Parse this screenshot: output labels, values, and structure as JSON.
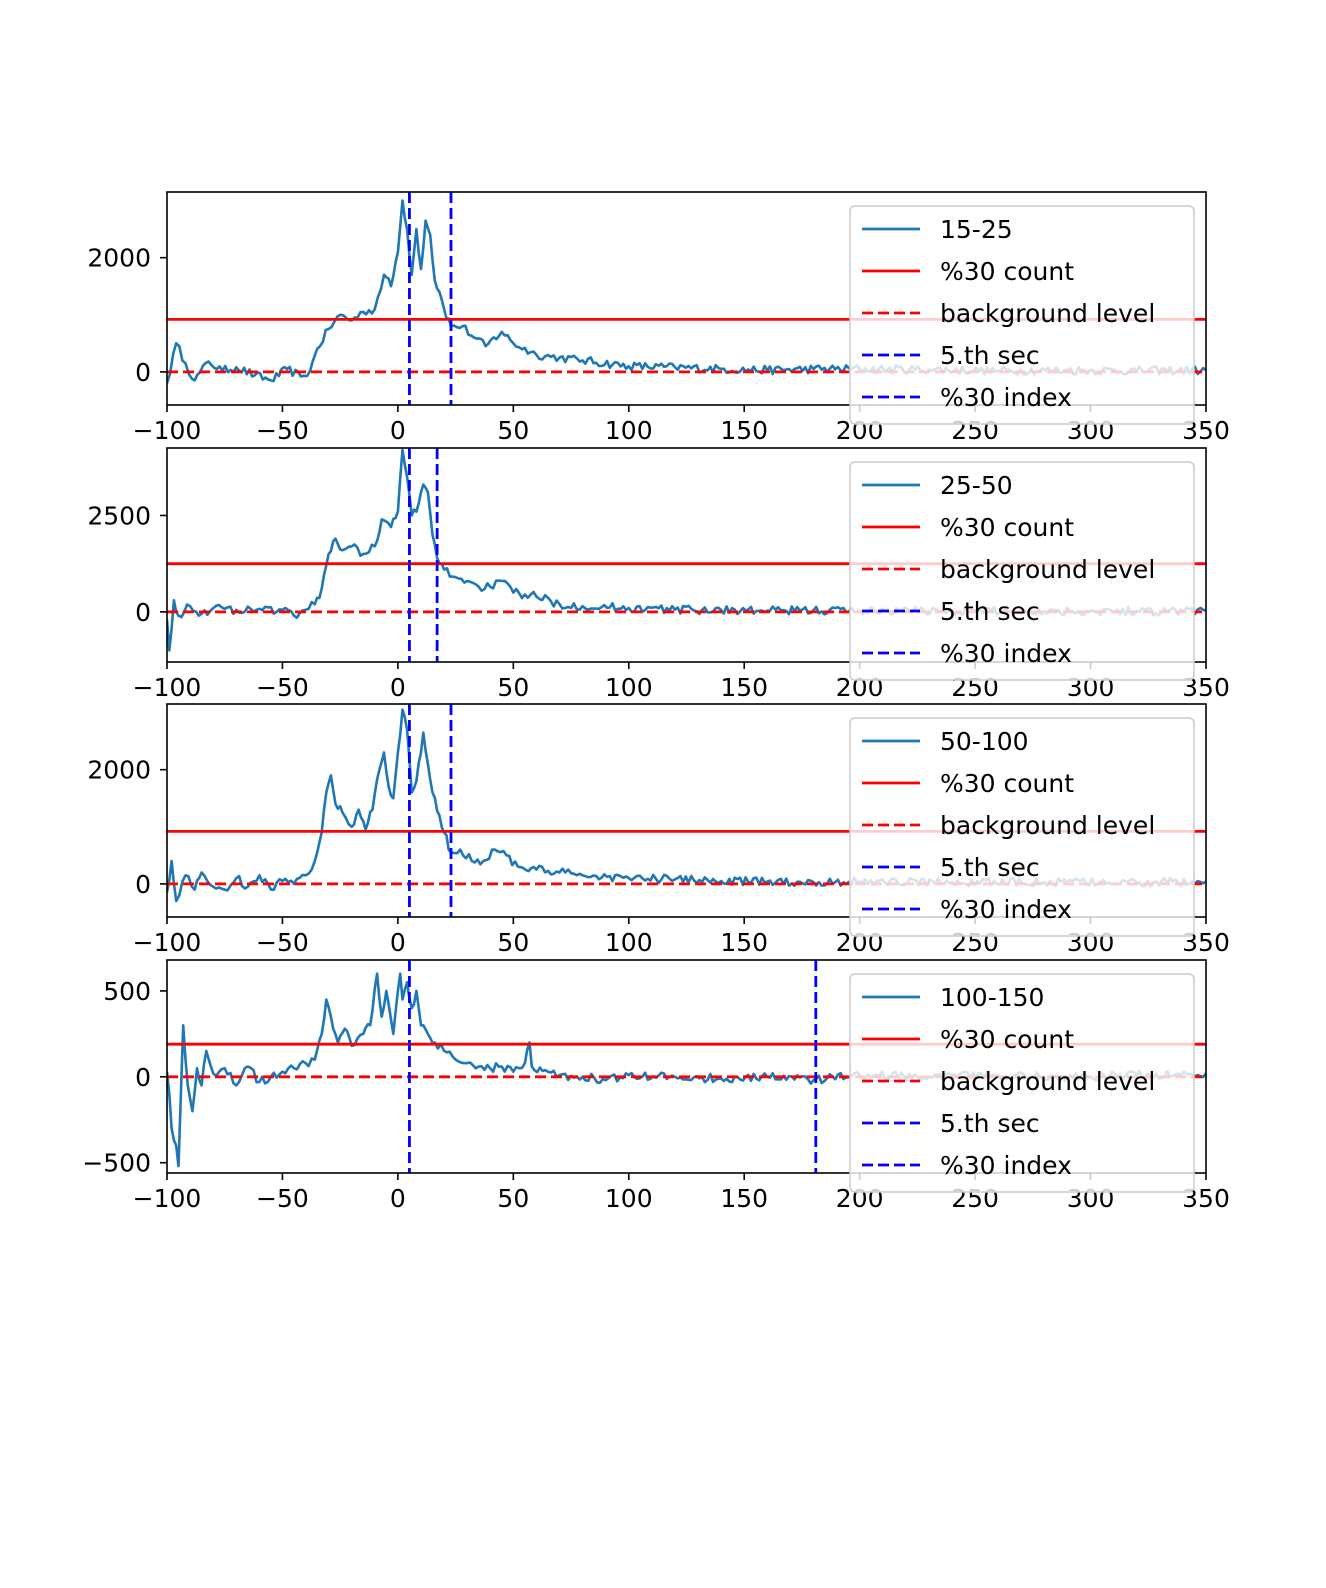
{
  "chart_data": [
    {
      "type": "line",
      "xlim": [
        -100,
        350
      ],
      "ylim": [
        -580,
        3150
      ],
      "xticks": [
        -100,
        -50,
        0,
        50,
        100,
        150,
        200,
        250,
        300,
        350
      ],
      "xtick_labels": [
        "−100",
        "−50",
        "0",
        "50",
        "100",
        "150",
        "200",
        "250",
        "300",
        "350"
      ],
      "yticks": [
        0,
        2000
      ],
      "ytick_labels": [
        "0",
        "2000"
      ],
      "hlines": {
        "count_30": 920,
        "background": 0
      },
      "vlines": {
        "sec5": 5,
        "index30": 23
      },
      "legend_location": "upper right",
      "legend": [
        "15-25",
        "%30 count",
        "background level",
        "5.th sec",
        "%30 index"
      ],
      "signal": {
        "name": "15-25",
        "points": [
          [
            -100,
            -200
          ],
          [
            -96,
            500
          ],
          [
            -92,
            150
          ],
          [
            -88,
            -150
          ],
          [
            -82,
            180
          ],
          [
            -76,
            20
          ],
          [
            -70,
            80
          ],
          [
            -62,
            -60
          ],
          [
            -55,
            -150
          ],
          [
            -48,
            50
          ],
          [
            -42,
            -80
          ],
          [
            -38,
            20
          ],
          [
            -35,
            400
          ],
          [
            -30,
            750
          ],
          [
            -25,
            1000
          ],
          [
            -20,
            900
          ],
          [
            -15,
            1050
          ],
          [
            -10,
            1100
          ],
          [
            -6,
            1700
          ],
          [
            -3,
            1500
          ],
          [
            0,
            2100
          ],
          [
            2,
            3000
          ],
          [
            4,
            2500
          ],
          [
            6,
            1700
          ],
          [
            8,
            2500
          ],
          [
            10,
            1800
          ],
          [
            12,
            2650
          ],
          [
            14,
            2400
          ],
          [
            16,
            1600
          ],
          [
            18,
            1400
          ],
          [
            20,
            1100
          ],
          [
            23,
            800
          ],
          [
            28,
            800
          ],
          [
            33,
            600
          ],
          [
            38,
            450
          ],
          [
            45,
            700
          ],
          [
            50,
            500
          ],
          [
            60,
            300
          ],
          [
            70,
            250
          ],
          [
            80,
            200
          ],
          [
            100,
            100
          ],
          [
            120,
            80
          ],
          [
            140,
            50
          ],
          [
            160,
            30
          ],
          [
            180,
            50
          ],
          [
            200,
            50
          ],
          [
            230,
            40
          ],
          [
            260,
            20
          ],
          [
            290,
            30
          ],
          [
            320,
            20
          ],
          [
            350,
            30
          ]
        ]
      }
    },
    {
      "type": "line",
      "xlim": [
        -100,
        350
      ],
      "ylim": [
        -1300,
        4250
      ],
      "xticks": [
        -100,
        -50,
        0,
        50,
        100,
        150,
        200,
        250,
        300,
        350
      ],
      "xtick_labels": [
        "−100",
        "−50",
        "0",
        "50",
        "100",
        "150",
        "200",
        "250",
        "300",
        "350"
      ],
      "yticks": [
        0,
        2500
      ],
      "ytick_labels": [
        "0",
        "2500"
      ],
      "hlines": {
        "count_30": 1250,
        "background": 0
      },
      "vlines": {
        "sec5": 5,
        "index30": 17
      },
      "legend_location": "upper right",
      "legend": [
        "25-50",
        "%30 count",
        "background level",
        "5.th sec",
        "%30 index"
      ],
      "signal": {
        "name": "25-50",
        "points": [
          [
            -100,
            -200
          ],
          [
            -99,
            -1000
          ],
          [
            -97,
            300
          ],
          [
            -95,
            -100
          ],
          [
            -90,
            150
          ],
          [
            -85,
            -50
          ],
          [
            -80,
            100
          ],
          [
            -70,
            50
          ],
          [
            -60,
            80
          ],
          [
            -50,
            50
          ],
          [
            -45,
            -100
          ],
          [
            -40,
            50
          ],
          [
            -36,
            200
          ],
          [
            -33,
            600
          ],
          [
            -30,
            1500
          ],
          [
            -27,
            1900
          ],
          [
            -24,
            1600
          ],
          [
            -20,
            1700
          ],
          [
            -15,
            1500
          ],
          [
            -10,
            1700
          ],
          [
            -7,
            2400
          ],
          [
            -3,
            2200
          ],
          [
            0,
            2600
          ],
          [
            2,
            4200
          ],
          [
            4,
            3500
          ],
          [
            6,
            2500
          ],
          [
            8,
            2600
          ],
          [
            10,
            3100
          ],
          [
            11,
            3300
          ],
          [
            13,
            3100
          ],
          [
            15,
            2000
          ],
          [
            17,
            1400
          ],
          [
            20,
            1100
          ],
          [
            25,
            900
          ],
          [
            30,
            800
          ],
          [
            35,
            650
          ],
          [
            40,
            650
          ],
          [
            45,
            800
          ],
          [
            50,
            500
          ],
          [
            55,
            450
          ],
          [
            60,
            400
          ],
          [
            70,
            200
          ],
          [
            80,
            150
          ],
          [
            100,
            100
          ],
          [
            120,
            60
          ],
          [
            140,
            50
          ],
          [
            160,
            30
          ],
          [
            180,
            40
          ],
          [
            200,
            30
          ],
          [
            240,
            30
          ],
          [
            280,
            20
          ],
          [
            320,
            20
          ],
          [
            350,
            30
          ]
        ]
      }
    },
    {
      "type": "line",
      "xlim": [
        -100,
        350
      ],
      "ylim": [
        -580,
        3150
      ],
      "xticks": [
        -100,
        -50,
        0,
        50,
        100,
        150,
        200,
        250,
        300,
        350
      ],
      "xtick_labels": [
        "−100",
        "−50",
        "0",
        "50",
        "100",
        "150",
        "200",
        "250",
        "300",
        "350"
      ],
      "yticks": [
        0,
        2000
      ],
      "ytick_labels": [
        "0",
        "2000"
      ],
      "hlines": {
        "count_30": 920,
        "background": 0
      },
      "vlines": {
        "sec5": 5,
        "index30": 23
      },
      "legend_location": "upper right",
      "legend": [
        "50-100",
        "%30 count",
        "background level",
        "5.th sec",
        "%30 index"
      ],
      "signal": {
        "name": "50-100",
        "points": [
          [
            -100,
            -150
          ],
          [
            -98,
            400
          ],
          [
            -96,
            -300
          ],
          [
            -92,
            150
          ],
          [
            -88,
            -100
          ],
          [
            -85,
            200
          ],
          [
            -80,
            -50
          ],
          [
            -75,
            -100
          ],
          [
            -70,
            100
          ],
          [
            -65,
            -50
          ],
          [
            -60,
            150
          ],
          [
            -55,
            -100
          ],
          [
            -50,
            50
          ],
          [
            -45,
            0
          ],
          [
            -40,
            150
          ],
          [
            -36,
            400
          ],
          [
            -33,
            900
          ],
          [
            -31,
            1600
          ],
          [
            -29,
            1900
          ],
          [
            -27,
            1400
          ],
          [
            -24,
            1250
          ],
          [
            -20,
            1000
          ],
          [
            -17,
            1300
          ],
          [
            -14,
            950
          ],
          [
            -11,
            1300
          ],
          [
            -8,
            2000
          ],
          [
            -6,
            2300
          ],
          [
            -4,
            1700
          ],
          [
            -2,
            1500
          ],
          [
            0,
            2300
          ],
          [
            2,
            3050
          ],
          [
            4,
            2700
          ],
          [
            6,
            1600
          ],
          [
            8,
            1800
          ],
          [
            10,
            2300
          ],
          [
            11,
            2650
          ],
          [
            13,
            2100
          ],
          [
            15,
            1600
          ],
          [
            18,
            1200
          ],
          [
            20,
            900
          ],
          [
            23,
            550
          ],
          [
            27,
            600
          ],
          [
            32,
            400
          ],
          [
            37,
            400
          ],
          [
            42,
            600
          ],
          [
            47,
            500
          ],
          [
            52,
            300
          ],
          [
            60,
            250
          ],
          [
            70,
            200
          ],
          [
            80,
            150
          ],
          [
            100,
            100
          ],
          [
            120,
            80
          ],
          [
            140,
            50
          ],
          [
            160,
            40
          ],
          [
            180,
            30
          ],
          [
            200,
            40
          ],
          [
            240,
            30
          ],
          [
            280,
            30
          ],
          [
            320,
            20
          ],
          [
            350,
            40
          ]
        ]
      }
    },
    {
      "type": "line",
      "xlim": [
        -100,
        350
      ],
      "ylim": [
        -560,
        680
      ],
      "xticks": [
        -100,
        -50,
        0,
        50,
        100,
        150,
        200,
        250,
        300,
        350
      ],
      "xtick_labels": [
        "−100",
        "−50",
        "0",
        "50",
        "100",
        "150",
        "200",
        "250",
        "300",
        "350"
      ],
      "yticks": [
        -500,
        0,
        500
      ],
      "ytick_labels": [
        "−500",
        "0",
        "500"
      ],
      "hlines": {
        "count_30": 190,
        "background": 0
      },
      "vlines": {
        "sec5": 5,
        "index30": 181
      },
      "legend_location": "upper right",
      "legend": [
        "100-150",
        "%30 count",
        "background level",
        "5.th sec",
        "%30 index"
      ],
      "signal": {
        "name": "100-150",
        "points": [
          [
            -100,
            30
          ],
          [
            -99,
            -100
          ],
          [
            -98,
            -300
          ],
          [
            -96,
            -400
          ],
          [
            -95,
            -520
          ],
          [
            -94,
            -100
          ],
          [
            -93,
            300
          ],
          [
            -92,
            100
          ],
          [
            -91,
            -50
          ],
          [
            -89,
            -200
          ],
          [
            -87,
            50
          ],
          [
            -85,
            -50
          ],
          [
            -83,
            150
          ],
          [
            -80,
            20
          ],
          [
            -75,
            50
          ],
          [
            -70,
            -50
          ],
          [
            -65,
            60
          ],
          [
            -60,
            -30
          ],
          [
            -55,
            0
          ],
          [
            -50,
            30
          ],
          [
            -45,
            50
          ],
          [
            -40,
            80
          ],
          [
            -36,
            100
          ],
          [
            -33,
            250
          ],
          [
            -31,
            450
          ],
          [
            -29,
            350
          ],
          [
            -26,
            200
          ],
          [
            -23,
            280
          ],
          [
            -20,
            180
          ],
          [
            -15,
            250
          ],
          [
            -12,
            300
          ],
          [
            -9,
            600
          ],
          [
            -7,
            350
          ],
          [
            -5,
            500
          ],
          [
            -2,
            250
          ],
          [
            0,
            500
          ],
          [
            1,
            600
          ],
          [
            2,
            450
          ],
          [
            4,
            550
          ],
          [
            6,
            400
          ],
          [
            8,
            500
          ],
          [
            10,
            300
          ],
          [
            13,
            250
          ],
          [
            16,
            200
          ],
          [
            20,
            150
          ],
          [
            25,
            100
          ],
          [
            30,
            80
          ],
          [
            35,
            60
          ],
          [
            40,
            50
          ],
          [
            45,
            60
          ],
          [
            50,
            30
          ],
          [
            55,
            80
          ],
          [
            57,
            200
          ],
          [
            58,
            60
          ],
          [
            65,
            30
          ],
          [
            70,
            10
          ],
          [
            80,
            0
          ],
          [
            90,
            -20
          ],
          [
            100,
            10
          ],
          [
            120,
            0
          ],
          [
            140,
            -10
          ],
          [
            160,
            0
          ],
          [
            180,
            -20
          ],
          [
            200,
            10
          ],
          [
            230,
            0
          ],
          [
            260,
            10
          ],
          [
            290,
            0
          ],
          [
            320,
            10
          ],
          [
            350,
            20
          ]
        ]
      }
    }
  ]
}
